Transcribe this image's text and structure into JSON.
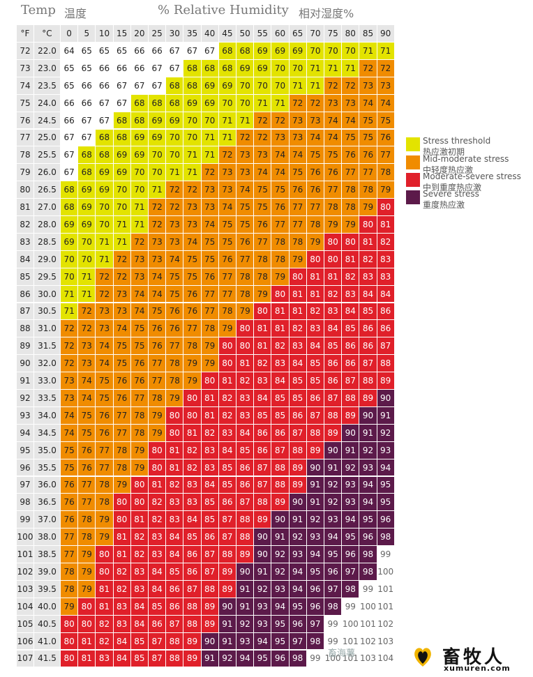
{
  "chart_data": {
    "type": "heatmap",
    "title_left": "Temp",
    "title_left_cn": "温度",
    "title_right": "% Relative Humidity",
    "title_right_cn": "相对湿度%",
    "header": {
      "f": "°F",
      "c": "°C"
    },
    "humidity": [
      0,
      5,
      10,
      15,
      20,
      25,
      30,
      35,
      40,
      45,
      50,
      55,
      60,
      65,
      70,
      75,
      80,
      85,
      90
    ],
    "temp_f": [
      72,
      73,
      74,
      75,
      76,
      77,
      78,
      79,
      80,
      81,
      82,
      83,
      84,
      85,
      86,
      87,
      88,
      89,
      90,
      91,
      92,
      93,
      94,
      95,
      96,
      97,
      98,
      99,
      100,
      101,
      102,
      103,
      104,
      105,
      106,
      107
    ],
    "temp_c": [
      "22.0",
      "23.0",
      "23.5",
      "24.0",
      "24.5",
      "25.0",
      "25.5",
      "26.0",
      "26.5",
      "27.0",
      "28.0",
      "28.5",
      "29.0",
      "29.5",
      "30.0",
      "30.5",
      "31.0",
      "31.5",
      "32.0",
      "33.0",
      "33.5",
      "34.0",
      "34.5",
      "35.0",
      "35.5",
      "36.0",
      "36.5",
      "37.0",
      "38.0",
      "38.5",
      "39.0",
      "39.5",
      "40.0",
      "40.5",
      "41.0",
      "41.5"
    ],
    "values": [
      [
        64,
        65,
        65,
        65,
        66,
        66,
        67,
        67,
        67,
        68,
        68,
        69,
        69,
        69,
        70,
        70,
        70,
        71,
        71
      ],
      [
        65,
        65,
        66,
        66,
        66,
        67,
        67,
        68,
        68,
        68,
        69,
        69,
        70,
        70,
        71,
        71,
        71,
        72,
        72
      ],
      [
        65,
        66,
        66,
        67,
        67,
        67,
        68,
        68,
        69,
        69,
        70,
        70,
        70,
        71,
        71,
        72,
        72,
        73,
        73
      ],
      [
        66,
        66,
        67,
        67,
        68,
        68,
        68,
        69,
        69,
        70,
        70,
        71,
        71,
        72,
        72,
        73,
        73,
        74,
        74
      ],
      [
        66,
        67,
        67,
        68,
        68,
        69,
        69,
        70,
        70,
        71,
        71,
        72,
        72,
        73,
        73,
        74,
        74,
        75,
        75
      ],
      [
        67,
        67,
        68,
        68,
        69,
        69,
        70,
        70,
        71,
        71,
        72,
        72,
        73,
        73,
        74,
        74,
        75,
        75,
        76
      ],
      [
        67,
        68,
        68,
        69,
        69,
        70,
        70,
        71,
        71,
        72,
        73,
        73,
        74,
        74,
        75,
        75,
        76,
        76,
        77
      ],
      [
        67,
        68,
        69,
        69,
        70,
        70,
        71,
        71,
        72,
        73,
        73,
        74,
        74,
        75,
        76,
        76,
        77,
        77,
        78
      ],
      [
        68,
        69,
        69,
        70,
        70,
        71,
        72,
        72,
        73,
        73,
        74,
        75,
        75,
        76,
        76,
        77,
        78,
        78,
        79
      ],
      [
        68,
        69,
        70,
        70,
        71,
        72,
        72,
        73,
        73,
        74,
        75,
        75,
        76,
        77,
        77,
        78,
        78,
        79,
        80
      ],
      [
        69,
        69,
        70,
        71,
        71,
        72,
        73,
        73,
        74,
        75,
        75,
        76,
        77,
        77,
        78,
        79,
        79,
        80,
        81
      ],
      [
        69,
        70,
        71,
        71,
        72,
        73,
        73,
        74,
        75,
        75,
        76,
        77,
        78,
        78,
        79,
        80,
        80,
        81,
        82
      ],
      [
        70,
        70,
        71,
        72,
        73,
        73,
        74,
        75,
        75,
        76,
        77,
        78,
        78,
        79,
        80,
        80,
        81,
        82,
        83
      ],
      [
        70,
        71,
        72,
        72,
        73,
        74,
        75,
        75,
        76,
        77,
        78,
        78,
        79,
        80,
        81,
        81,
        82,
        83,
        83
      ],
      [
        71,
        71,
        72,
        73,
        74,
        74,
        75,
        76,
        77,
        77,
        78,
        79,
        80,
        81,
        81,
        82,
        83,
        84,
        84
      ],
      [
        71,
        72,
        73,
        73,
        74,
        75,
        76,
        76,
        77,
        78,
        79,
        80,
        81,
        81,
        82,
        83,
        84,
        85,
        86
      ],
      [
        72,
        72,
        73,
        74,
        75,
        76,
        76,
        77,
        78,
        79,
        80,
        81,
        81,
        82,
        83,
        84,
        85,
        86,
        86
      ],
      [
        72,
        73,
        74,
        75,
        75,
        76,
        77,
        78,
        79,
        80,
        80,
        81,
        82,
        83,
        84,
        85,
        86,
        86,
        87
      ],
      [
        72,
        73,
        74,
        75,
        76,
        77,
        78,
        79,
        79,
        80,
        81,
        82,
        83,
        84,
        85,
        86,
        86,
        87,
        88
      ],
      [
        73,
        74,
        75,
        76,
        76,
        77,
        78,
        79,
        80,
        81,
        82,
        83,
        84,
        85,
        85,
        86,
        87,
        88,
        89
      ],
      [
        73,
        74,
        75,
        76,
        77,
        78,
        79,
        80,
        81,
        82,
        83,
        84,
        85,
        85,
        86,
        87,
        88,
        89,
        90
      ],
      [
        74,
        75,
        76,
        77,
        78,
        79,
        80,
        80,
        81,
        82,
        83,
        85,
        85,
        86,
        87,
        88,
        89,
        90,
        91
      ],
      [
        74,
        75,
        76,
        77,
        78,
        79,
        80,
        81,
        82,
        83,
        84,
        86,
        86,
        87,
        88,
        89,
        90,
        91,
        92
      ],
      [
        75,
        76,
        77,
        78,
        79,
        80,
        81,
        82,
        83,
        84,
        85,
        86,
        87,
        88,
        89,
        90,
        91,
        92,
        93
      ],
      [
        75,
        76,
        77,
        78,
        79,
        80,
        81,
        82,
        83,
        85,
        86,
        87,
        88,
        89,
        90,
        91,
        92,
        93,
        94
      ],
      [
        76,
        77,
        78,
        79,
        80,
        81,
        82,
        83,
        84,
        85,
        86,
        87,
        88,
        89,
        91,
        92,
        93,
        94,
        95
      ],
      [
        76,
        77,
        78,
        80,
        80,
        82,
        83,
        83,
        85,
        86,
        87,
        88,
        89,
        90,
        91,
        92,
        93,
        94,
        95
      ],
      [
        76,
        78,
        79,
        80,
        81,
        82,
        83,
        84,
        85,
        87,
        88,
        89,
        90,
        91,
        92,
        93,
        94,
        95,
        96
      ],
      [
        77,
        78,
        79,
        81,
        82,
        83,
        84,
        85,
        86,
        87,
        88,
        90,
        91,
        92,
        93,
        94,
        95,
        96,
        98
      ],
      [
        77,
        79,
        80,
        81,
        82,
        83,
        84,
        86,
        87,
        88,
        89,
        90,
        92,
        93,
        94,
        95,
        96,
        98,
        99
      ],
      [
        78,
        79,
        80,
        82,
        83,
        84,
        85,
        86,
        87,
        89,
        90,
        91,
        92,
        94,
        95,
        96,
        97,
        98,
        100
      ],
      [
        78,
        79,
        81,
        82,
        83,
        84,
        86,
        87,
        88,
        89,
        91,
        92,
        93,
        94,
        96,
        97,
        98,
        99,
        101
      ],
      [
        79,
        80,
        81,
        83,
        84,
        85,
        86,
        88,
        89,
        90,
        91,
        93,
        94,
        95,
        96,
        98,
        99,
        100,
        101
      ],
      [
        80,
        80,
        82,
        83,
        84,
        86,
        87,
        88,
        89,
        91,
        92,
        93,
        95,
        96,
        97,
        99,
        100,
        101,
        102
      ],
      [
        80,
        81,
        82,
        84,
        85,
        87,
        88,
        89,
        90,
        91,
        93,
        94,
        95,
        97,
        98,
        99,
        101,
        102,
        103
      ],
      [
        80,
        81,
        83,
        84,
        85,
        87,
        88,
        89,
        91,
        92,
        94,
        95,
        96,
        98,
        99,
        100,
        101,
        103,
        104
      ]
    ],
    "thresholds": {
      "stress": 68,
      "mid": 72,
      "moderate": 80,
      "severe": 90,
      "none_above": 99
    },
    "legend": [
      {
        "en": "Stress threshold",
        "cn": "热应激初期",
        "color": "#e3e300"
      },
      {
        "en": "Mid-moderate stress",
        "cn": "中轻度热应激",
        "color": "#f08c00"
      },
      {
        "en": "Moderate-severe stress",
        "cn": "中到重度热应激",
        "color": "#e0202a"
      },
      {
        "en": "Severe stress",
        "cn": "重度热应激",
        "color": "#5c1a4a"
      }
    ],
    "colors": {
      "none": "#ffffff",
      "header": "#e6e6e6"
    }
  },
  "watermark": {
    "left": "畜海薯",
    "brand_cn": "畜牧人",
    "brand_en": "xumuren.com"
  }
}
